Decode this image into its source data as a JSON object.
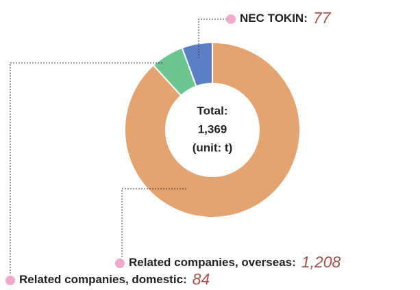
{
  "chart_data": {
    "type": "donut",
    "categories": [
      "Related companies, overseas:",
      "Related companies, domestic:",
      "NEC TOKIN:"
    ],
    "values": [
      1208,
      84,
      77
    ],
    "value_labels": [
      "1,208",
      "84",
      "77"
    ],
    "colors": [
      "#e3a472",
      "#6cc58e",
      "#5b7fc4"
    ],
    "center_text": [
      "Total:",
      "1,369",
      "(unit: t)"
    ]
  }
}
